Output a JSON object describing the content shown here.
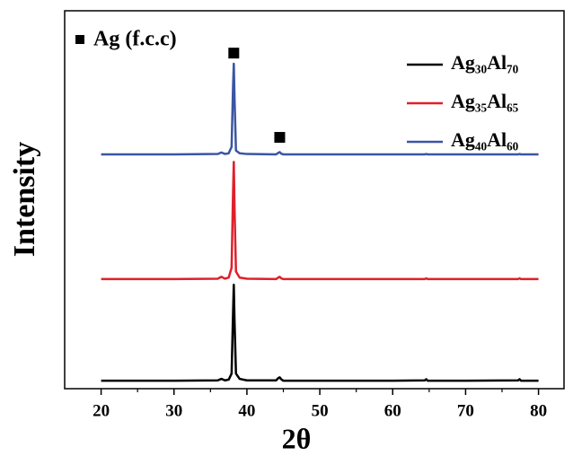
{
  "chart_data": {
    "type": "line",
    "xlabel": "2θ",
    "ylabel": "Intensity",
    "xlim": [
      15,
      83.5
    ],
    "ylim": [
      0,
      100
    ],
    "xticks": [
      20,
      30,
      40,
      50,
      60,
      70,
      80
    ],
    "xminor_ticks": [
      25,
      35,
      45,
      55,
      65,
      75
    ],
    "legend": "upper right",
    "x": [
      20,
      30,
      36,
      36.5,
      37,
      37.5,
      37.9,
      38.1,
      38.2,
      38.3,
      38.5,
      39,
      40,
      44,
      44.3,
      44.5,
      44.7,
      45,
      60,
      64.4,
      64.6,
      64.8,
      70,
      77.2,
      77.4,
      77.6,
      80
    ],
    "series": [
      {
        "name": "Ag₃₀Al₇₀",
        "color": "#000000",
        "values": [
          2.1,
          2.1,
          2.2,
          2.6,
          2.2,
          2.4,
          4,
          20,
          27.5,
          18,
          4,
          2.6,
          2.2,
          2.2,
          2.8,
          3,
          2.5,
          2.1,
          2.1,
          2.2,
          2.5,
          2.1,
          2.1,
          2.2,
          2.5,
          2.1,
          2.1
        ]
      },
      {
        "name": "Ag₃₅Al₆₅",
        "color": "#e0202a",
        "values": [
          29,
          29,
          29.1,
          29.6,
          29.1,
          29.4,
          32,
          52,
          60,
          48,
          31,
          29.4,
          29.1,
          29,
          29.4,
          29.6,
          29.2,
          29,
          29,
          29,
          29.2,
          29,
          29,
          29,
          29.2,
          29,
          29
        ]
      },
      {
        "name": "Ag₄₀Al₆₀",
        "color": "#3a55a4",
        "values": [
          62,
          62,
          62.1,
          62.5,
          62.1,
          62.3,
          64,
          80,
          86,
          77,
          63,
          62.3,
          62.1,
          62,
          62.4,
          62.6,
          62.2,
          62,
          62,
          62,
          62.1,
          62,
          62,
          62,
          62.1,
          62,
          62
        ]
      }
    ],
    "phase_markers": {
      "name": "Ag (f.c.c)",
      "x": [
        38.2,
        44.5
      ],
      "y": [
        88.8,
        66.5
      ]
    }
  }
}
